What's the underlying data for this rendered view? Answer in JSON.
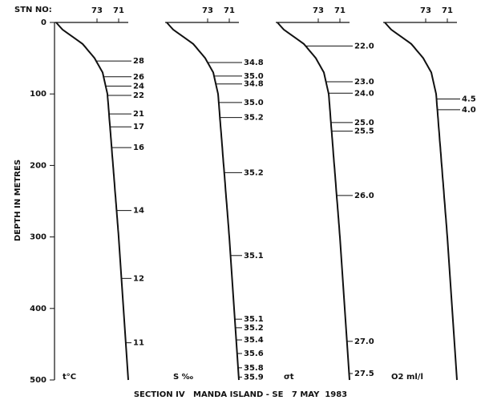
{
  "header": {
    "label": "STN NO:"
  },
  "depth_axis": {
    "label": "DEPTH IN METRES",
    "ylim": [
      0,
      500
    ],
    "yticks": [
      0,
      100,
      200,
      300,
      400,
      500
    ]
  },
  "panels": [
    {
      "stations": [
        "73",
        "71"
      ],
      "variable": "t°C",
      "isolines": [
        {
          "label": "28",
          "depth": 54
        },
        {
          "label": "26",
          "depth": 76
        },
        {
          "label": "24",
          "depth": 89
        },
        {
          "label": "22",
          "depth": 102
        },
        {
          "label": "21",
          "depth": 128
        },
        {
          "label": "17",
          "depth": 146
        },
        {
          "label": "16",
          "depth": 175
        },
        {
          "label": "14",
          "depth": 263
        },
        {
          "label": "12",
          "depth": 358
        },
        {
          "label": "11",
          "depth": 448
        }
      ]
    },
    {
      "stations": [
        "73",
        "71"
      ],
      "variable": "S ‰",
      "isolines": [
        {
          "label": "34.8",
          "depth": 56
        },
        {
          "label": "35.0",
          "depth": 75
        },
        {
          "label": "34.8",
          "depth": 86
        },
        {
          "label": "35.0",
          "depth": 112
        },
        {
          "label": "35.2",
          "depth": 133
        },
        {
          "label": "35.2",
          "depth": 210
        },
        {
          "label": "35.1",
          "depth": 326
        },
        {
          "label": "35.1",
          "depth": 415
        },
        {
          "label": "35.2",
          "depth": 427
        },
        {
          "label": "35.4",
          "depth": 444
        },
        {
          "label": "35.6",
          "depth": 463
        },
        {
          "label": "35.8",
          "depth": 483
        },
        {
          "label": "35.9",
          "depth": 496
        }
      ]
    },
    {
      "stations": [
        "73",
        "71"
      ],
      "variable": "σt",
      "isolines": [
        {
          "label": "22.0",
          "depth": 33
        },
        {
          "label": "23.0",
          "depth": 83
        },
        {
          "label": "24.0",
          "depth": 99
        },
        {
          "label": "25.0",
          "depth": 140
        },
        {
          "label": "25.5",
          "depth": 152
        },
        {
          "label": "26.0",
          "depth": 242
        },
        {
          "label": "27.0",
          "depth": 446
        },
        {
          "label": "27.5",
          "depth": 491
        }
      ]
    },
    {
      "stations": [
        "73",
        "71"
      ],
      "variable": "O2 ml/l",
      "isolines": [
        {
          "label": "4.5",
          "depth": 107
        },
        {
          "label": "4.0",
          "depth": 122
        }
      ]
    }
  ],
  "footer": "SECTION IV   MANDA ISLAND - SE   7 MAY  1983"
}
